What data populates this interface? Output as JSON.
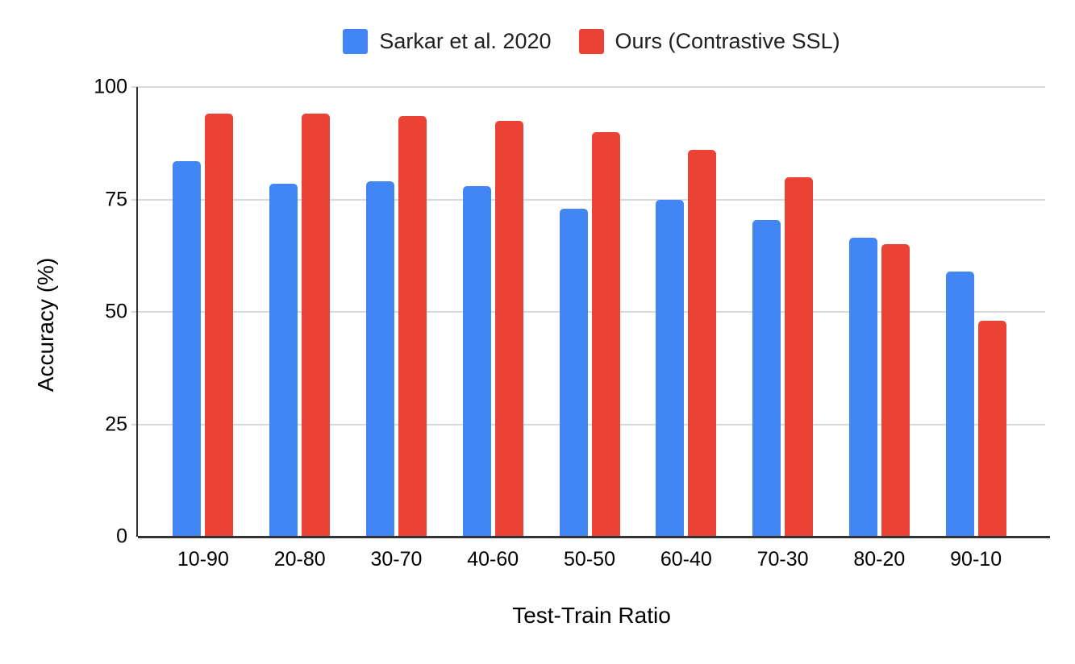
{
  "chart_data": {
    "type": "bar",
    "title": "",
    "categories": [
      "10-90",
      "20-80",
      "30-70",
      "40-60",
      "50-50",
      "60-40",
      "70-30",
      "80-20",
      "90-10"
    ],
    "series": [
      {
        "name": "Sarkar et al. 2020",
        "color": "#4285F4",
        "values": [
          83.5,
          78.5,
          79,
          78,
          73,
          75,
          70.5,
          66.5,
          59
        ]
      },
      {
        "name": "Ours (Contrastive SSL)",
        "color": "#EA4335",
        "values": [
          94,
          94,
          93.5,
          92.5,
          90,
          86,
          80,
          65,
          48
        ]
      }
    ],
    "xlabel": "Test-Train Ratio",
    "ylabel": "Accuracy (%)",
    "ylim": [
      0,
      100
    ],
    "yticks": [
      0,
      25,
      50,
      75,
      100
    ],
    "grid": true,
    "legend_position": "top"
  },
  "colors": {
    "background": "#ffffff",
    "gridline": "#d9d9d9",
    "axis_line": "#333333",
    "tick_text": "#000000",
    "legend_text": "#1f1f1f"
  }
}
